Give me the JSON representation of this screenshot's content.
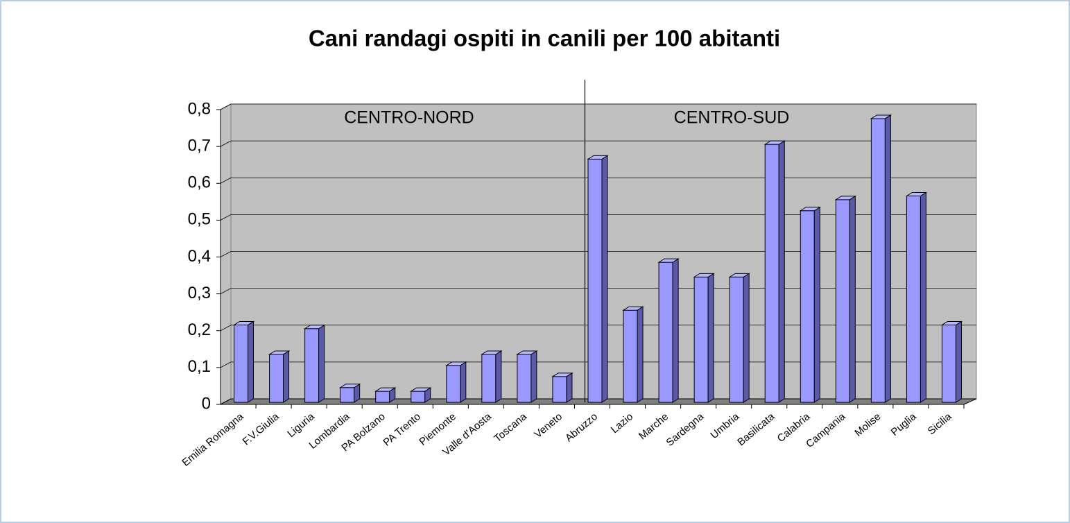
{
  "chart_data": {
    "type": "bar3d",
    "title": "Cani randagi ospiti in canili per 100 abitanti",
    "annotations": [
      "CENTRO-NORD",
      "CENTRO-SUD"
    ],
    "categories": [
      "Emilia Romagna",
      "F.V.Giulia",
      "Liguria",
      "Lombardia",
      "PA Bolzano",
      "PA Trento",
      "Piemonte",
      "Valle d'Aosta",
      "Toscana",
      "Veneto",
      "Abruzzo",
      "Lazio",
      "Marche",
      "Sardegna",
      "Umbria",
      "Basilicata",
      "Calabria",
      "Campania",
      "Molise",
      "Puglia",
      "Sicilia"
    ],
    "values": [
      0.21,
      0.13,
      0.2,
      0.04,
      0.03,
      0.03,
      0.1,
      0.13,
      0.13,
      0.07,
      0.66,
      0.25,
      0.38,
      0.34,
      0.34,
      0.7,
      0.52,
      0.55,
      0.77,
      0.56,
      0.21
    ],
    "color": "#9999ff",
    "ylim": [
      0,
      0.8
    ],
    "yticks": [
      0,
      {
        "value": 0.1,
        "label": "0,1"
      },
      {
        "value": 0.2,
        "label": "0,2"
      },
      {
        "value": 0.3,
        "label": "0,3"
      },
      {
        "value": 0.4,
        "label": "0,4"
      },
      {
        "value": 0.5,
        "label": "0,5"
      },
      {
        "value": 0.6,
        "label": "0,6"
      },
      {
        "value": 0.7,
        "label": "0,7"
      },
      {
        "value": 0.8,
        "label": "0,8"
      }
    ],
    "grid": true
  }
}
